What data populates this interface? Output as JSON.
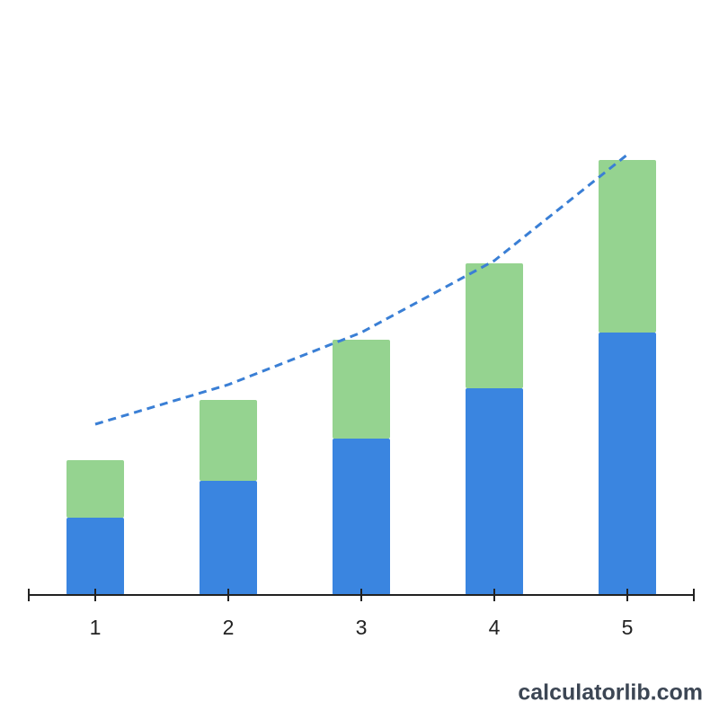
{
  "chart_data": {
    "type": "stacked-bar",
    "categories": [
      "1",
      "2",
      "3",
      "4",
      "5"
    ],
    "series": [
      {
        "color": "#3a85e0",
        "values": [
          86,
          127,
          174,
          230,
          292
        ]
      },
      {
        "color": "#95d390",
        "values": [
          64,
          90,
          110,
          139,
          192
        ]
      }
    ],
    "line": {
      "color": "#3a7fd5",
      "dashed": true,
      "values": [
        190,
        234,
        292,
        372,
        490
      ]
    },
    "ylim": [
      0,
      600
    ],
    "watermark": "calculatorlib.com"
  }
}
